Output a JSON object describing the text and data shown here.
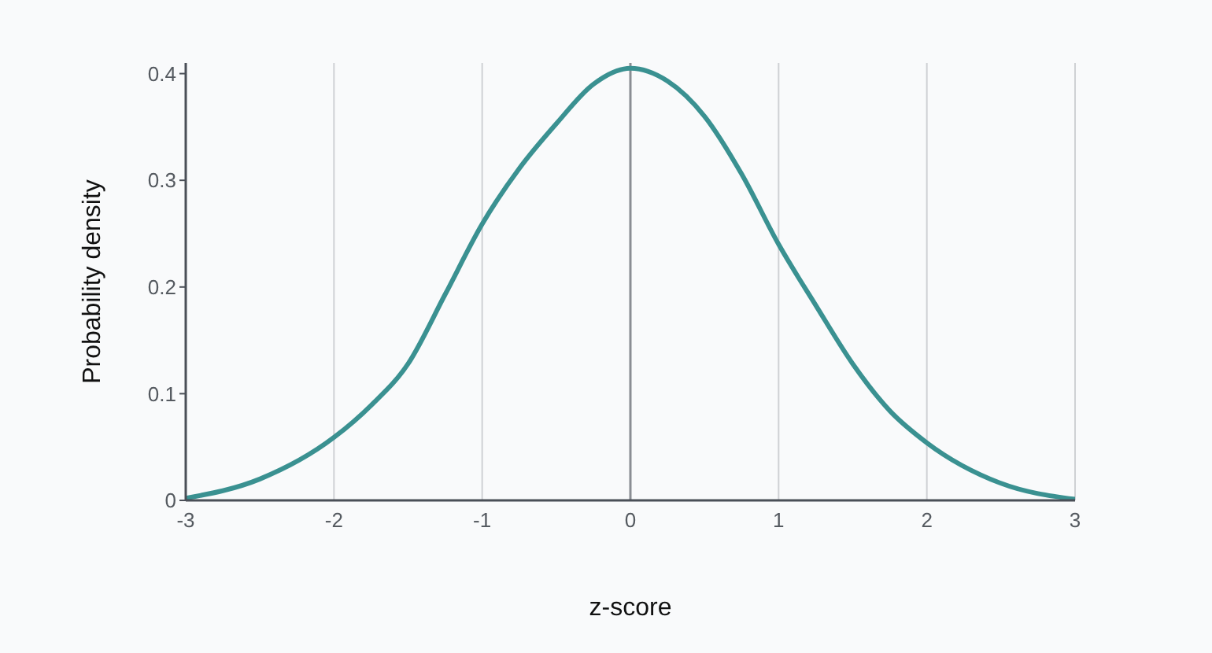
{
  "chart_data": {
    "type": "line",
    "xlabel": "z-score",
    "ylabel": "Probability density",
    "x": [
      -3,
      -2.5,
      -2,
      -1.75,
      -1.5,
      -1.25,
      -1,
      -0.75,
      -0.5,
      -0.25,
      0,
      0.25,
      0.5,
      0.75,
      1,
      1.25,
      1.5,
      1.75,
      2,
      2.5,
      3
    ],
    "series": [
      {
        "color": "#3a9191",
        "values": [
          0.002,
          0.02,
          0.059,
          0.089,
          0.128,
          0.193,
          0.259,
          0.311,
          0.353,
          0.39,
          0.405,
          0.393,
          0.36,
          0.306,
          0.24,
          0.183,
          0.128,
          0.084,
          0.054,
          0.016,
          0.001
        ]
      }
    ],
    "xlim": [
      -3,
      3
    ],
    "xticks": [
      -3,
      -2,
      -1,
      0,
      1,
      2,
      3
    ],
    "ylim": [
      0,
      0.41
    ],
    "yticks": [
      0,
      0.1,
      0.2,
      0.3,
      0.4
    ],
    "grid": "x",
    "marker": "none",
    "line_style": "solid",
    "ref_lines": [
      {
        "axis": "x",
        "value": 0,
        "color": "#8a8d93"
      }
    ]
  }
}
